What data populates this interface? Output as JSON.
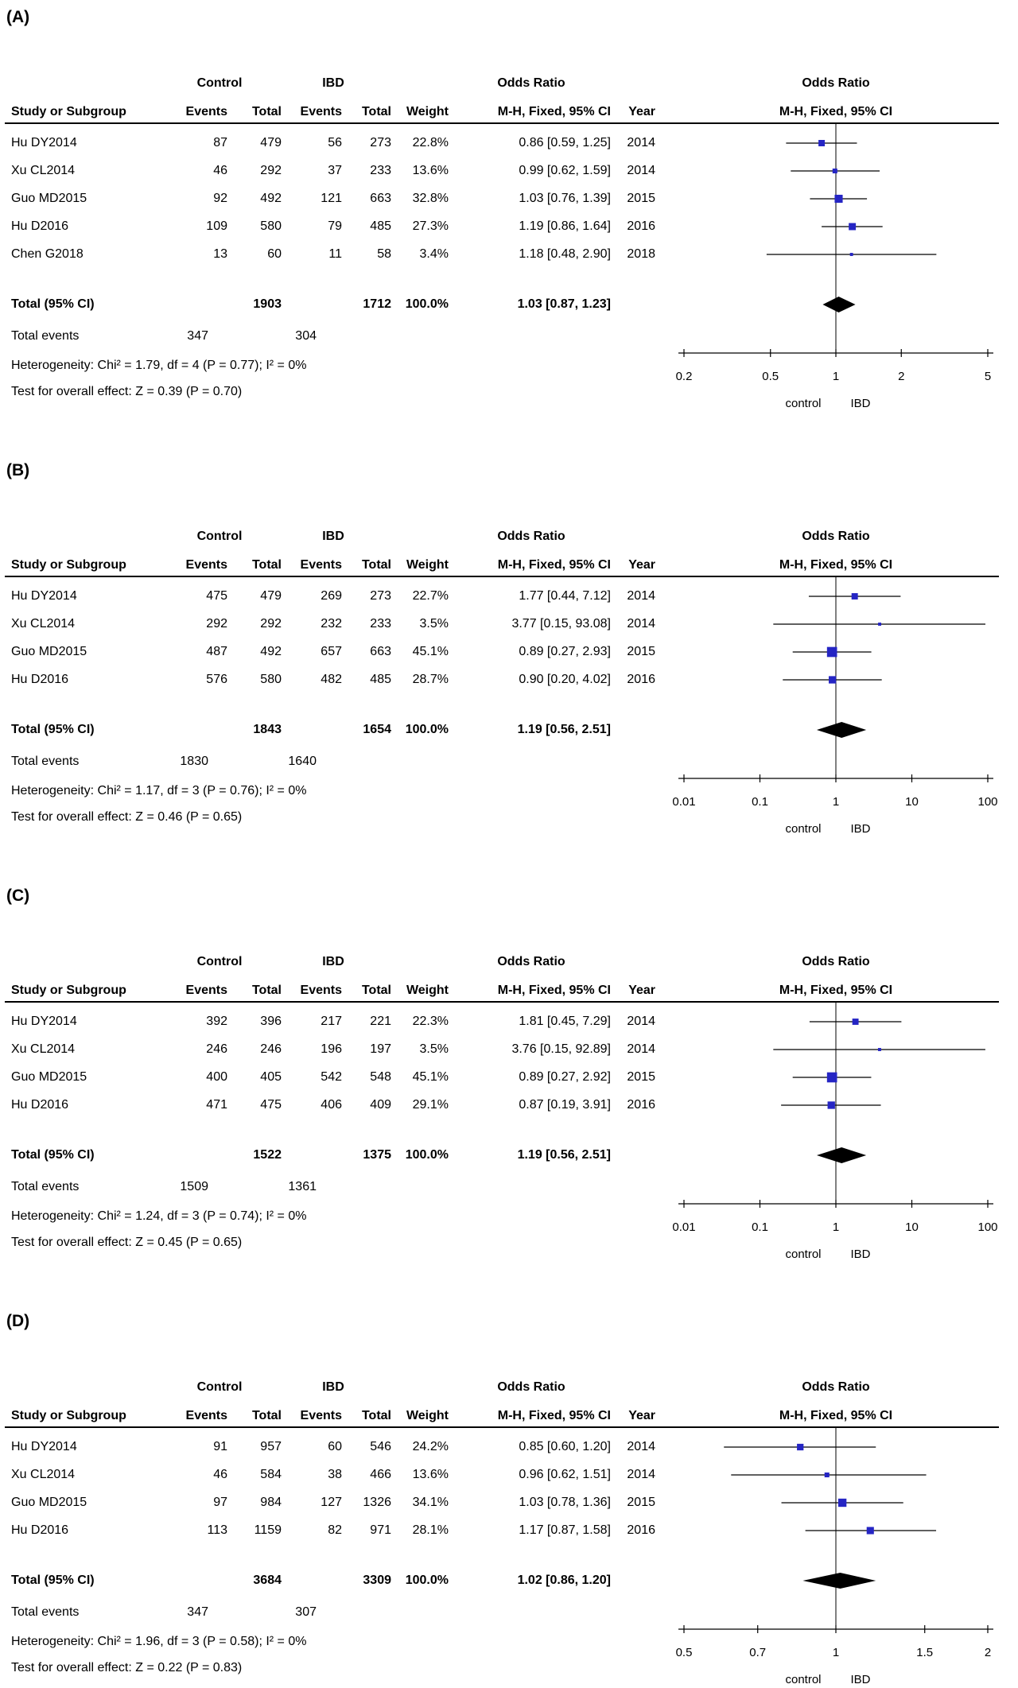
{
  "columns": {
    "group_control": "Control",
    "group_ibd": "IBD",
    "odds_ratio": "Odds Ratio",
    "study": "Study or Subgroup",
    "events": "Events",
    "total": "Total",
    "weight": "Weight",
    "mh_fixed_ci": "M-H, Fixed, 95% CI",
    "year": "Year"
  },
  "axis_group_labels": {
    "left": "control",
    "right": "IBD"
  },
  "style": {
    "marker_color": "#2525c4",
    "summary_color": "#000000",
    "line_color": "#000000"
  },
  "chart_data": [
    {
      "type": "forest",
      "panel_label": "(A)",
      "effect_measure": "Odds Ratio",
      "method": "M-H, Fixed, 95% CI",
      "axis_ticks": [
        "0.2",
        "0.5",
        "1",
        "2",
        "5"
      ],
      "xlim": [
        0.2,
        5
      ],
      "studies": [
        {
          "study": "Hu DY2014",
          "control_events": "87",
          "control_total": "479",
          "ibd_events": "56",
          "ibd_total": "273",
          "weight": "22.8%",
          "or": 0.86,
          "ci_low": 0.59,
          "ci_high": 1.25,
          "or_ci_text": "0.86 [0.59, 1.25]",
          "year": "2014"
        },
        {
          "study": "Xu CL2014",
          "control_events": "46",
          "control_total": "292",
          "ibd_events": "37",
          "ibd_total": "233",
          "weight": "13.6%",
          "or": 0.99,
          "ci_low": 0.62,
          "ci_high": 1.59,
          "or_ci_text": "0.99 [0.62, 1.59]",
          "year": "2014"
        },
        {
          "study": "Guo MD2015",
          "control_events": "92",
          "control_total": "492",
          "ibd_events": "121",
          "ibd_total": "663",
          "weight": "32.8%",
          "or": 1.03,
          "ci_low": 0.76,
          "ci_high": 1.39,
          "or_ci_text": "1.03 [0.76, 1.39]",
          "year": "2015"
        },
        {
          "study": "Hu D2016",
          "control_events": "109",
          "control_total": "580",
          "ibd_events": "79",
          "ibd_total": "485",
          "weight": "27.3%",
          "or": 1.19,
          "ci_low": 0.86,
          "ci_high": 1.64,
          "or_ci_text": "1.19 [0.86, 1.64]",
          "year": "2016"
        },
        {
          "study": "Chen G2018",
          "control_events": "13",
          "control_total": "60",
          "ibd_events": "11",
          "ibd_total": "58",
          "weight": "3.4%",
          "or": 1.18,
          "ci_low": 0.48,
          "ci_high": 2.9,
          "or_ci_text": "1.18 [0.48, 2.90]",
          "year": "2018"
        }
      ],
      "total": {
        "label": "Total (95% CI)",
        "control_total": "1903",
        "ibd_total": "1712",
        "weight": "100.0%",
        "or": 1.03,
        "ci_low": 0.87,
        "ci_high": 1.23,
        "or_ci_text": "1.03 [0.87, 1.23]"
      },
      "total_events": {
        "label": "Total events",
        "control": "347",
        "ibd": "304"
      },
      "heterogeneity": "Heterogeneity: Chi² = 1.79, df = 4 (P = 0.77); I² = 0%",
      "overall_effect": "Test for overall effect: Z = 0.39 (P = 0.70)"
    },
    {
      "type": "forest",
      "panel_label": "(B)",
      "effect_measure": "Odds Ratio",
      "method": "M-H, Fixed, 95% CI",
      "axis_ticks": [
        "0.01",
        "0.1",
        "1",
        "10",
        "100"
      ],
      "xlim": [
        0.01,
        100
      ],
      "studies": [
        {
          "study": "Hu DY2014",
          "control_events": "475",
          "control_total": "479",
          "ibd_events": "269",
          "ibd_total": "273",
          "weight": "22.7%",
          "or": 1.77,
          "ci_low": 0.44,
          "ci_high": 7.12,
          "or_ci_text": "1.77 [0.44, 7.12]",
          "year": "2014"
        },
        {
          "study": "Xu CL2014",
          "control_events": "292",
          "control_total": "292",
          "ibd_events": "232",
          "ibd_total": "233",
          "weight": "3.5%",
          "or": 3.77,
          "ci_low": 0.15,
          "ci_high": 93.08,
          "or_ci_text": "3.77 [0.15, 93.08]",
          "year": "2014"
        },
        {
          "study": "Guo MD2015",
          "control_events": "487",
          "control_total": "492",
          "ibd_events": "657",
          "ibd_total": "663",
          "weight": "45.1%",
          "or": 0.89,
          "ci_low": 0.27,
          "ci_high": 2.93,
          "or_ci_text": "0.89 [0.27, 2.93]",
          "year": "2015"
        },
        {
          "study": "Hu D2016",
          "control_events": "576",
          "control_total": "580",
          "ibd_events": "482",
          "ibd_total": "485",
          "weight": "28.7%",
          "or": 0.9,
          "ci_low": 0.2,
          "ci_high": 4.02,
          "or_ci_text": "0.90 [0.20, 4.02]",
          "year": "2016"
        }
      ],
      "total": {
        "label": "Total (95% CI)",
        "control_total": "1843",
        "ibd_total": "1654",
        "weight": "100.0%",
        "or": 1.19,
        "ci_low": 0.56,
        "ci_high": 2.51,
        "or_ci_text": "1.19 [0.56, 2.51]"
      },
      "total_events": {
        "label": "Total events",
        "control": "1830",
        "ibd": "1640"
      },
      "heterogeneity": "Heterogeneity: Chi² = 1.17, df = 3 (P = 0.76); I² = 0%",
      "overall_effect": "Test for overall effect: Z = 0.46 (P = 0.65)"
    },
    {
      "type": "forest",
      "panel_label": "(C)",
      "effect_measure": "Odds Ratio",
      "method": "M-H, Fixed, 95% CI",
      "axis_ticks": [
        "0.01",
        "0.1",
        "1",
        "10",
        "100"
      ],
      "xlim": [
        0.01,
        100
      ],
      "studies": [
        {
          "study": "Hu DY2014",
          "control_events": "392",
          "control_total": "396",
          "ibd_events": "217",
          "ibd_total": "221",
          "weight": "22.3%",
          "or": 1.81,
          "ci_low": 0.45,
          "ci_high": 7.29,
          "or_ci_text": "1.81 [0.45, 7.29]",
          "year": "2014"
        },
        {
          "study": "Xu CL2014",
          "control_events": "246",
          "control_total": "246",
          "ibd_events": "196",
          "ibd_total": "197",
          "weight": "3.5%",
          "or": 3.76,
          "ci_low": 0.15,
          "ci_high": 92.89,
          "or_ci_text": "3.76 [0.15, 92.89]",
          "year": "2014"
        },
        {
          "study": "Guo MD2015",
          "control_events": "400",
          "control_total": "405",
          "ibd_events": "542",
          "ibd_total": "548",
          "weight": "45.1%",
          "or": 0.89,
          "ci_low": 0.27,
          "ci_high": 2.92,
          "or_ci_text": "0.89 [0.27, 2.92]",
          "year": "2015"
        },
        {
          "study": "Hu D2016",
          "control_events": "471",
          "control_total": "475",
          "ibd_events": "406",
          "ibd_total": "409",
          "weight": "29.1%",
          "or": 0.87,
          "ci_low": 0.19,
          "ci_high": 3.91,
          "or_ci_text": "0.87 [0.19, 3.91]",
          "year": "2016"
        }
      ],
      "total": {
        "label": "Total (95% CI)",
        "control_total": "1522",
        "ibd_total": "1375",
        "weight": "100.0%",
        "or": 1.19,
        "ci_low": 0.56,
        "ci_high": 2.51,
        "or_ci_text": "1.19 [0.56, 2.51]"
      },
      "total_events": {
        "label": "Total events",
        "control": "1509",
        "ibd": "1361"
      },
      "heterogeneity": "Heterogeneity: Chi² = 1.24, df = 3 (P = 0.74); I² = 0%",
      "overall_effect": "Test for overall effect: Z = 0.45 (P = 0.65)"
    },
    {
      "type": "forest",
      "panel_label": "(D)",
      "effect_measure": "Odds Ratio",
      "method": "M-H, Fixed, 95% CI",
      "axis_ticks": [
        "0.5",
        "0.7",
        "1",
        "1.5",
        "2"
      ],
      "xlim": [
        0.5,
        2
      ],
      "studies": [
        {
          "study": "Hu DY2014",
          "control_events": "91",
          "control_total": "957",
          "ibd_events": "60",
          "ibd_total": "546",
          "weight": "24.2%",
          "or": 0.85,
          "ci_low": 0.6,
          "ci_high": 1.2,
          "or_ci_text": "0.85 [0.60, 1.20]",
          "year": "2014"
        },
        {
          "study": "Xu CL2014",
          "control_events": "46",
          "control_total": "584",
          "ibd_events": "38",
          "ibd_total": "466",
          "weight": "13.6%",
          "or": 0.96,
          "ci_low": 0.62,
          "ci_high": 1.51,
          "or_ci_text": "0.96 [0.62, 1.51]",
          "year": "2014"
        },
        {
          "study": "Guo MD2015",
          "control_events": "97",
          "control_total": "984",
          "ibd_events": "127",
          "ibd_total": "1326",
          "weight": "34.1%",
          "or": 1.03,
          "ci_low": 0.78,
          "ci_high": 1.36,
          "or_ci_text": "1.03 [0.78, 1.36]",
          "year": "2015"
        },
        {
          "study": "Hu D2016",
          "control_events": "113",
          "control_total": "1159",
          "ibd_events": "82",
          "ibd_total": "971",
          "weight": "28.1%",
          "or": 1.17,
          "ci_low": 0.87,
          "ci_high": 1.58,
          "or_ci_text": "1.17 [0.87, 1.58]",
          "year": "2016"
        }
      ],
      "total": {
        "label": "Total (95% CI)",
        "control_total": "3684",
        "ibd_total": "3309",
        "weight": "100.0%",
        "or": 1.02,
        "ci_low": 0.86,
        "ci_high": 1.2,
        "or_ci_text": "1.02 [0.86, 1.20]"
      },
      "total_events": {
        "label": "Total events",
        "control": "347",
        "ibd": "307"
      },
      "heterogeneity": "Heterogeneity: Chi² = 1.96, df = 3 (P = 0.58); I² = 0%",
      "overall_effect": "Test for overall effect: Z = 0.22 (P = 0.83)"
    }
  ]
}
